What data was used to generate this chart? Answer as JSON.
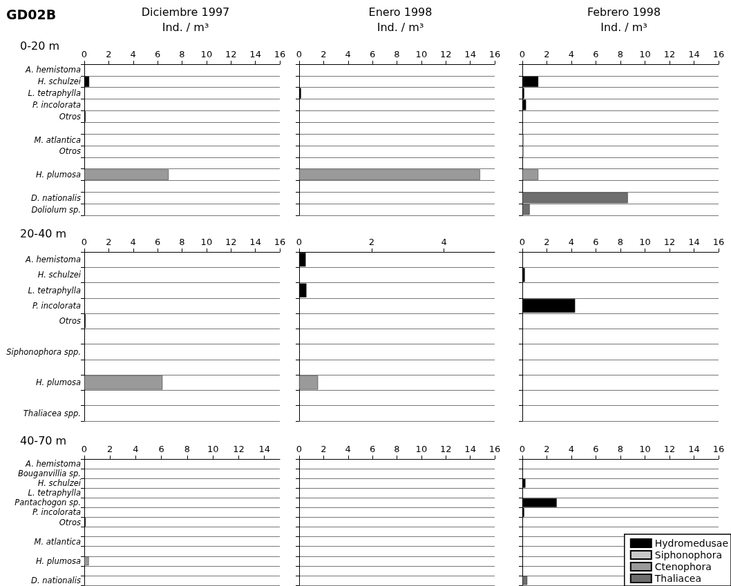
{
  "chart_data": [
    {
      "type": "bar",
      "orientation": "horizontal",
      "stacked": true,
      "grid": "y",
      "legend": false,
      "title": "Diciembre 1997",
      "xlabel": "Ind. / m³",
      "subtitle": "0-20 m",
      "annotations": [
        "GD02B"
      ],
      "categories": [
        "A. hemistoma",
        "H. schulzei",
        "L. tetraphylla",
        "P. incolorata",
        "Otros",
        null,
        "M. atlantica",
        "Otros",
        null,
        "H. plumosa",
        null,
        "D. nationalis",
        "Doliolum sp."
      ],
      "xlim": [
        0,
        16
      ],
      "xticks": [
        0,
        2,
        4,
        6,
        8,
        10,
        12,
        14,
        16
      ],
      "series": [
        {
          "color": "#000000",
          "values": [
            null,
            0.4,
            null,
            null,
            0.1,
            null,
            null,
            null,
            null,
            null,
            null,
            null,
            null
          ]
        },
        {
          "color": "#9a9a9a",
          "values": [
            null,
            null,
            null,
            null,
            null,
            null,
            null,
            null,
            null,
            6.9,
            null,
            null,
            null
          ]
        }
      ]
    },
    {
      "type": "bar",
      "orientation": "horizontal",
      "stacked": true,
      "grid": "y",
      "legend": false,
      "title": "Enero 1998",
      "xlabel": "Ind. / m³",
      "categories": [
        null,
        null,
        null,
        null,
        null,
        null,
        null,
        null,
        null,
        null,
        null,
        null,
        null
      ],
      "xlim": [
        0,
        16
      ],
      "xticks": [
        0,
        2,
        4,
        6,
        8,
        10,
        12,
        14,
        16
      ],
      "series": [
        {
          "color": "#000000",
          "values": [
            null,
            null,
            0.15,
            null,
            null,
            null,
            null,
            null,
            null,
            null,
            null,
            null,
            null
          ]
        },
        {
          "color": "#9a9a9a",
          "values": [
            null,
            null,
            null,
            null,
            null,
            null,
            null,
            null,
            null,
            14.8,
            null,
            null,
            null
          ]
        }
      ]
    },
    {
      "type": "bar",
      "orientation": "horizontal",
      "stacked": true,
      "grid": "y",
      "legend": false,
      "title": "Febrero 1998",
      "xlabel": "Ind. / m³",
      "categories": [
        null,
        null,
        null,
        null,
        null,
        null,
        null,
        null,
        null,
        null,
        null,
        null,
        null
      ],
      "xlim": [
        0,
        16
      ],
      "xticks": [
        0,
        2,
        4,
        6,
        8,
        10,
        12,
        14,
        16
      ],
      "series": [
        {
          "color": "#000000",
          "values": [
            null,
            1.3,
            0.15,
            0.3,
            null,
            null,
            null,
            null,
            null,
            null,
            null,
            null,
            null
          ]
        },
        {
          "color": "#c8c8c8",
          "values": [
            null,
            null,
            null,
            null,
            null,
            null,
            0.1,
            0.1,
            null,
            null,
            null,
            null,
            null
          ]
        },
        {
          "color": "#9a9a9a",
          "values": [
            null,
            null,
            null,
            null,
            null,
            null,
            null,
            null,
            null,
            1.3,
            null,
            null,
            null
          ]
        },
        {
          "color": "#6e6e6e",
          "values": [
            null,
            null,
            null,
            null,
            null,
            null,
            null,
            null,
            null,
            null,
            null,
            8.6,
            0.6
          ]
        }
      ]
    },
    {
      "type": "bar",
      "orientation": "horizontal",
      "stacked": true,
      "grid": "y",
      "legend": false,
      "subtitle": "20-40 m",
      "categories": [
        "A. hemistoma",
        "H. schulzei",
        "L. tetraphylla",
        "P. incolorata",
        "Otros",
        null,
        "Siphonophora spp.",
        null,
        "H. plumosa",
        null,
        "Thaliacea spp."
      ],
      "xlim": [
        0,
        16
      ],
      "xticks": [
        0,
        2,
        4,
        6,
        8,
        10,
        12,
        14,
        16
      ],
      "series": [
        {
          "color": "#000000",
          "values": [
            null,
            null,
            null,
            null,
            0.1,
            null,
            null,
            null,
            null,
            null,
            null
          ]
        },
        {
          "color": "#9a9a9a",
          "values": [
            null,
            null,
            null,
            null,
            null,
            null,
            null,
            null,
            6.4,
            null,
            null
          ]
        }
      ]
    },
    {
      "type": "bar",
      "orientation": "horizontal",
      "stacked": true,
      "grid": "y",
      "legend": false,
      "categories": [
        null,
        null,
        null,
        null,
        null,
        null,
        null,
        null,
        null,
        null,
        null
      ],
      "xlim": [
        0,
        5.4
      ],
      "xticks": [
        0,
        2,
        4
      ],
      "series": [
        {
          "color": "#000000",
          "values": [
            0.18,
            null,
            0.2,
            null,
            null,
            null,
            null,
            null,
            null,
            null,
            null
          ]
        },
        {
          "color": "#9a9a9a",
          "values": [
            null,
            null,
            null,
            null,
            null,
            null,
            null,
            null,
            0.52,
            null,
            null
          ]
        }
      ]
    },
    {
      "type": "bar",
      "orientation": "horizontal",
      "stacked": true,
      "grid": "y",
      "legend": false,
      "categories": [
        null,
        null,
        null,
        null,
        null,
        null,
        null,
        null,
        null,
        null,
        null
      ],
      "xlim": [
        0,
        16
      ],
      "xticks": [
        0,
        2,
        4,
        6,
        8,
        10,
        12,
        14,
        16
      ],
      "series": [
        {
          "color": "#000000",
          "values": [
            null,
            0.2,
            null,
            4.3,
            null,
            null,
            null,
            null,
            null,
            null,
            null
          ]
        }
      ]
    },
    {
      "type": "bar",
      "orientation": "horizontal",
      "stacked": true,
      "grid": "y",
      "legend": false,
      "subtitle": "40-70 m",
      "categories": [
        "A. hemistoma",
        "Bouganvillia sp.",
        "H. schulzei",
        "L. tetraphylla",
        "Pantachogon sp.",
        "P. incolorata",
        "Otros",
        null,
        "M. atlantica",
        null,
        "H. plumosa",
        null,
        "D. nationalis"
      ],
      "xlim": [
        0,
        15.2
      ],
      "xticks": [
        0,
        2,
        4,
        6,
        8,
        10,
        12,
        14
      ],
      "series": [
        {
          "color": "#000000",
          "values": [
            null,
            null,
            null,
            null,
            null,
            null,
            0.1,
            null,
            null,
            null,
            null,
            null,
            null
          ]
        },
        {
          "color": "#9a9a9a",
          "values": [
            null,
            null,
            null,
            null,
            null,
            null,
            null,
            null,
            null,
            null,
            0.35,
            null,
            null
          ]
        }
      ]
    },
    {
      "type": "bar",
      "orientation": "horizontal",
      "stacked": true,
      "grid": "y",
      "legend": false,
      "categories": [
        null,
        null,
        null,
        null,
        null,
        null,
        null,
        null,
        null,
        null,
        null,
        null,
        null
      ],
      "xlim": [
        0,
        16
      ],
      "xticks": [
        0,
        2,
        4,
        6,
        8,
        10,
        12,
        14,
        16
      ],
      "series": [
        {
          "color": "#000000",
          "values": [
            null,
            null,
            null,
            null,
            null,
            null,
            null,
            null,
            null,
            null,
            null,
            null,
            null
          ]
        }
      ]
    },
    {
      "type": "bar",
      "orientation": "horizontal",
      "stacked": true,
      "grid": "y",
      "legend": "bottom right",
      "categories": [
        null,
        null,
        null,
        null,
        null,
        null,
        null,
        null,
        null,
        null,
        null,
        null,
        null
      ],
      "xlim": [
        0,
        16
      ],
      "xticks": [
        0,
        2,
        4,
        6,
        8,
        10,
        12,
        14,
        16
      ],
      "series": [
        {
          "name": "Hydromedusae",
          "color": "#000000",
          "values": [
            null,
            null,
            0.25,
            null,
            2.8,
            0.15,
            null,
            null,
            null,
            null,
            null,
            null,
            null
          ]
        },
        {
          "name": "Siphonophora",
          "color": "#c8c8c8",
          "values": [
            null,
            null,
            null,
            null,
            null,
            null,
            null,
            null,
            null,
            null,
            null,
            null,
            null
          ]
        },
        {
          "name": "Ctenophora",
          "color": "#9a9a9a",
          "values": [
            null,
            null,
            null,
            null,
            null,
            null,
            null,
            null,
            null,
            null,
            null,
            null,
            null
          ]
        },
        {
          "name": "Thaliacea",
          "color": "#6e6e6e",
          "values": [
            null,
            null,
            null,
            null,
            null,
            null,
            null,
            null,
            null,
            null,
            null,
            null,
            0.4
          ]
        }
      ]
    }
  ]
}
